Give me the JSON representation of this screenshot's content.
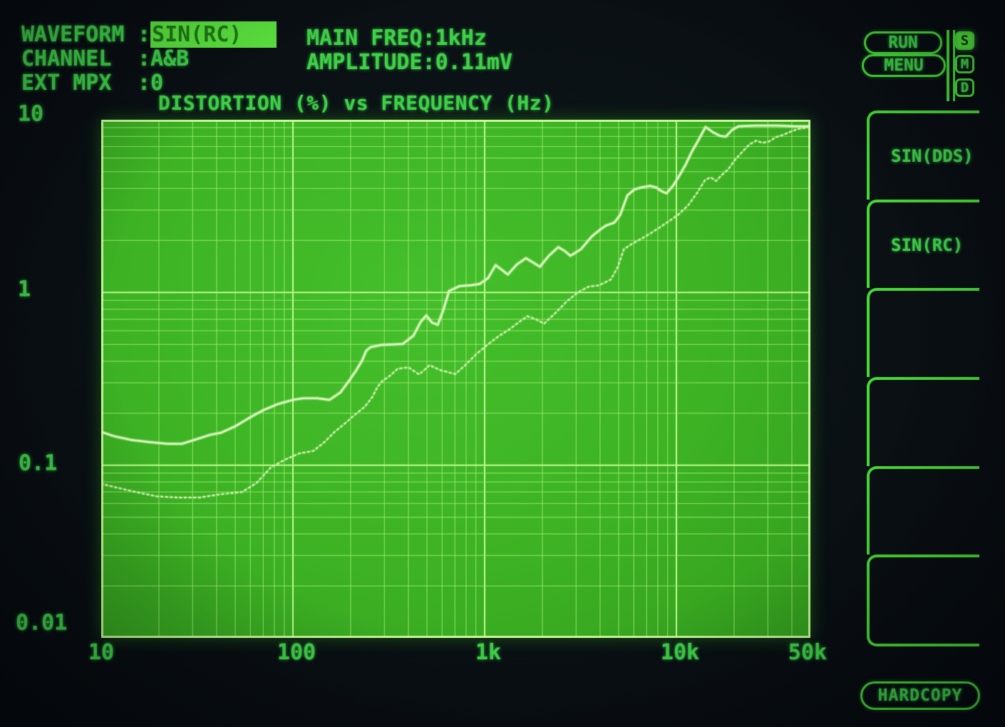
{
  "header": {
    "colon": ":",
    "fields": [
      {
        "label": "WAVEFORM",
        "value": "SIN(RC)",
        "highlighted": true
      },
      {
        "label": "CHANNEL",
        "value": "A&B",
        "highlighted": false
      },
      {
        "label": "EXT MPX",
        "value": "0",
        "highlighted": false
      }
    ],
    "right_fields": [
      {
        "label": "MAIN FREQ",
        "value": "1kHz"
      },
      {
        "label": "AMPLITUDE",
        "value": "0.11mV"
      }
    ]
  },
  "controls": {
    "run_label": "RUN",
    "menu_label": "MENU",
    "status_indicators": [
      {
        "label": "S",
        "active": true
      },
      {
        "label": "M",
        "active": false
      },
      {
        "label": "D",
        "active": false
      }
    ],
    "softkeys": [
      {
        "label": "SIN(DDS)"
      },
      {
        "label": "SIN(RC)"
      },
      {
        "label": ""
      },
      {
        "label": ""
      },
      {
        "label": ""
      },
      {
        "label": ""
      }
    ],
    "hardcopy_label": "HARDCOPY"
  },
  "chart_data": {
    "type": "line",
    "title": "DISTORTION (%) vs FREQUENCY (Hz)",
    "xlabel": "FREQUENCY (Hz)",
    "ylabel": "DISTORTION (%)",
    "x_scale": "log",
    "y_scale": "log",
    "xlim": [
      10,
      50000
    ],
    "ylim": [
      0.01,
      10
    ],
    "x_ticks": [
      "10",
      "100",
      "1k",
      "10k",
      "50k"
    ],
    "x_tick_values": [
      10,
      100,
      1000,
      10000,
      50000
    ],
    "y_ticks": [
      "10",
      "1",
      "0.1",
      "0.01"
    ],
    "y_tick_values": [
      10,
      1,
      0.1,
      0.01
    ],
    "grid": "log minor+major gridlines, green phosphor CRT",
    "legend_position": "none",
    "series": [
      {
        "name": "trace-1-solid",
        "style": "solid",
        "points": [
          [
            10,
            0.156
          ],
          [
            11.7,
            0.147
          ],
          [
            14.4,
            0.14
          ],
          [
            17.9,
            0.136
          ],
          [
            22.2,
            0.133
          ],
          [
            26.3,
            0.133
          ],
          [
            31.2,
            0.141
          ],
          [
            37.1,
            0.15
          ],
          [
            42.1,
            0.154
          ],
          [
            50,
            0.168
          ],
          [
            59.3,
            0.188
          ],
          [
            70.4,
            0.209
          ],
          [
            83.6,
            0.226
          ],
          [
            100,
            0.239
          ],
          [
            113,
            0.244
          ],
          [
            134,
            0.244
          ],
          [
            155,
            0.239
          ],
          [
            177,
            0.264
          ],
          [
            197,
            0.31
          ],
          [
            214,
            0.355
          ],
          [
            229,
            0.402
          ],
          [
            241,
            0.46
          ],
          [
            254,
            0.482
          ],
          [
            289,
            0.497
          ],
          [
            329,
            0.5
          ],
          [
            373,
            0.503
          ],
          [
            425,
            0.562
          ],
          [
            463,
            0.674
          ],
          [
            496,
            0.736
          ],
          [
            531,
            0.67
          ],
          [
            569,
            0.65
          ],
          [
            609,
            0.794
          ],
          [
            652,
            1.02
          ],
          [
            741,
            1.09
          ],
          [
            843,
            1.1
          ],
          [
            942,
            1.12
          ],
          [
            1040,
            1.21
          ],
          [
            1140,
            1.44
          ],
          [
            1230,
            1.35
          ],
          [
            1320,
            1.27
          ],
          [
            1470,
            1.45
          ],
          [
            1640,
            1.58
          ],
          [
            1790,
            1.49
          ],
          [
            1940,
            1.41
          ],
          [
            2160,
            1.63
          ],
          [
            2420,
            1.83
          ],
          [
            2610,
            1.74
          ],
          [
            2800,
            1.63
          ],
          [
            3180,
            1.78
          ],
          [
            3620,
            2.11
          ],
          [
            4000,
            2.31
          ],
          [
            4290,
            2.44
          ],
          [
            4750,
            2.54
          ],
          [
            5090,
            2.81
          ],
          [
            5550,
            3.65
          ],
          [
            6040,
            3.95
          ],
          [
            6580,
            4.06
          ],
          [
            7300,
            4.14
          ],
          [
            7820,
            4.06
          ],
          [
            8370,
            3.86
          ],
          [
            8880,
            3.75
          ],
          [
            9590,
            4.14
          ],
          [
            10300,
            4.69
          ],
          [
            11200,
            5.52
          ],
          [
            12000,
            6.49
          ],
          [
            13100,
            7.7
          ],
          [
            14200,
            9.08
          ],
          [
            15500,
            8.47
          ],
          [
            16900,
            8.06
          ],
          [
            18100,
            7.98
          ],
          [
            19500,
            8.72
          ],
          [
            21100,
            9.16
          ],
          [
            25900,
            9.25
          ],
          [
            33500,
            9.25
          ],
          [
            41500,
            9.16
          ],
          [
            50000,
            9.16
          ]
        ]
      },
      {
        "name": "trace-2-dotted",
        "style": "dotted",
        "points": [
          [
            10,
            0.078
          ],
          [
            12.2,
            0.074
          ],
          [
            15.1,
            0.07
          ],
          [
            19.5,
            0.066
          ],
          [
            25.2,
            0.065
          ],
          [
            32.6,
            0.065
          ],
          [
            42.1,
            0.068
          ],
          [
            54.4,
            0.07
          ],
          [
            64.7,
            0.079
          ],
          [
            76.6,
            0.097
          ],
          [
            91.4,
            0.108
          ],
          [
            108,
            0.117
          ],
          [
            128,
            0.121
          ],
          [
            146,
            0.136
          ],
          [
            165,
            0.156
          ],
          [
            185,
            0.173
          ],
          [
            208,
            0.194
          ],
          [
            237,
            0.218
          ],
          [
            260,
            0.249
          ],
          [
            276,
            0.284
          ],
          [
            293,
            0.307
          ],
          [
            320,
            0.329
          ],
          [
            352,
            0.362
          ],
          [
            400,
            0.369
          ],
          [
            455,
            0.335
          ],
          [
            516,
            0.379
          ],
          [
            587,
            0.355
          ],
          [
            703,
            0.337
          ],
          [
            799,
            0.383
          ],
          [
            909,
            0.442
          ],
          [
            1040,
            0.501
          ],
          [
            1180,
            0.557
          ],
          [
            1350,
            0.613
          ],
          [
            1510,
            0.674
          ],
          [
            1670,
            0.729
          ],
          [
            1850,
            0.7
          ],
          [
            2040,
            0.66
          ],
          [
            2370,
            0.772
          ],
          [
            2690,
            0.891
          ],
          [
            3060,
            1.0
          ],
          [
            3480,
            1.08
          ],
          [
            3950,
            1.1
          ],
          [
            4560,
            1.19
          ],
          [
            4940,
            1.4
          ],
          [
            5320,
            1.78
          ],
          [
            5900,
            1.92
          ],
          [
            6580,
            2.05
          ],
          [
            7330,
            2.2
          ],
          [
            8280,
            2.4
          ],
          [
            9260,
            2.61
          ],
          [
            10300,
            2.84
          ],
          [
            11500,
            3.19
          ],
          [
            12800,
            3.76
          ],
          [
            14100,
            4.47
          ],
          [
            15100,
            4.64
          ],
          [
            16100,
            4.42
          ],
          [
            17300,
            4.8
          ],
          [
            18700,
            5.19
          ],
          [
            20100,
            5.81
          ],
          [
            22200,
            6.56
          ],
          [
            24100,
            7.21
          ],
          [
            26100,
            7.56
          ],
          [
            28100,
            7.35
          ],
          [
            30500,
            7.49
          ],
          [
            33100,
            7.94
          ],
          [
            36000,
            8.17
          ],
          [
            39000,
            8.49
          ],
          [
            42700,
            8.83
          ],
          [
            50000,
            9.08
          ]
        ]
      }
    ]
  },
  "colors": {
    "screen_bg": "#0a1014",
    "text_green": "#3dd145",
    "line_green": "#46da36",
    "chart_bg": "#3db324",
    "grid_green": "#a8f27a",
    "trace_solid": "#dcfabd",
    "trace_dotted": "#c9f0a4",
    "highlight_bg": "#5be33e",
    "highlight_text": "#1d7a14"
  }
}
